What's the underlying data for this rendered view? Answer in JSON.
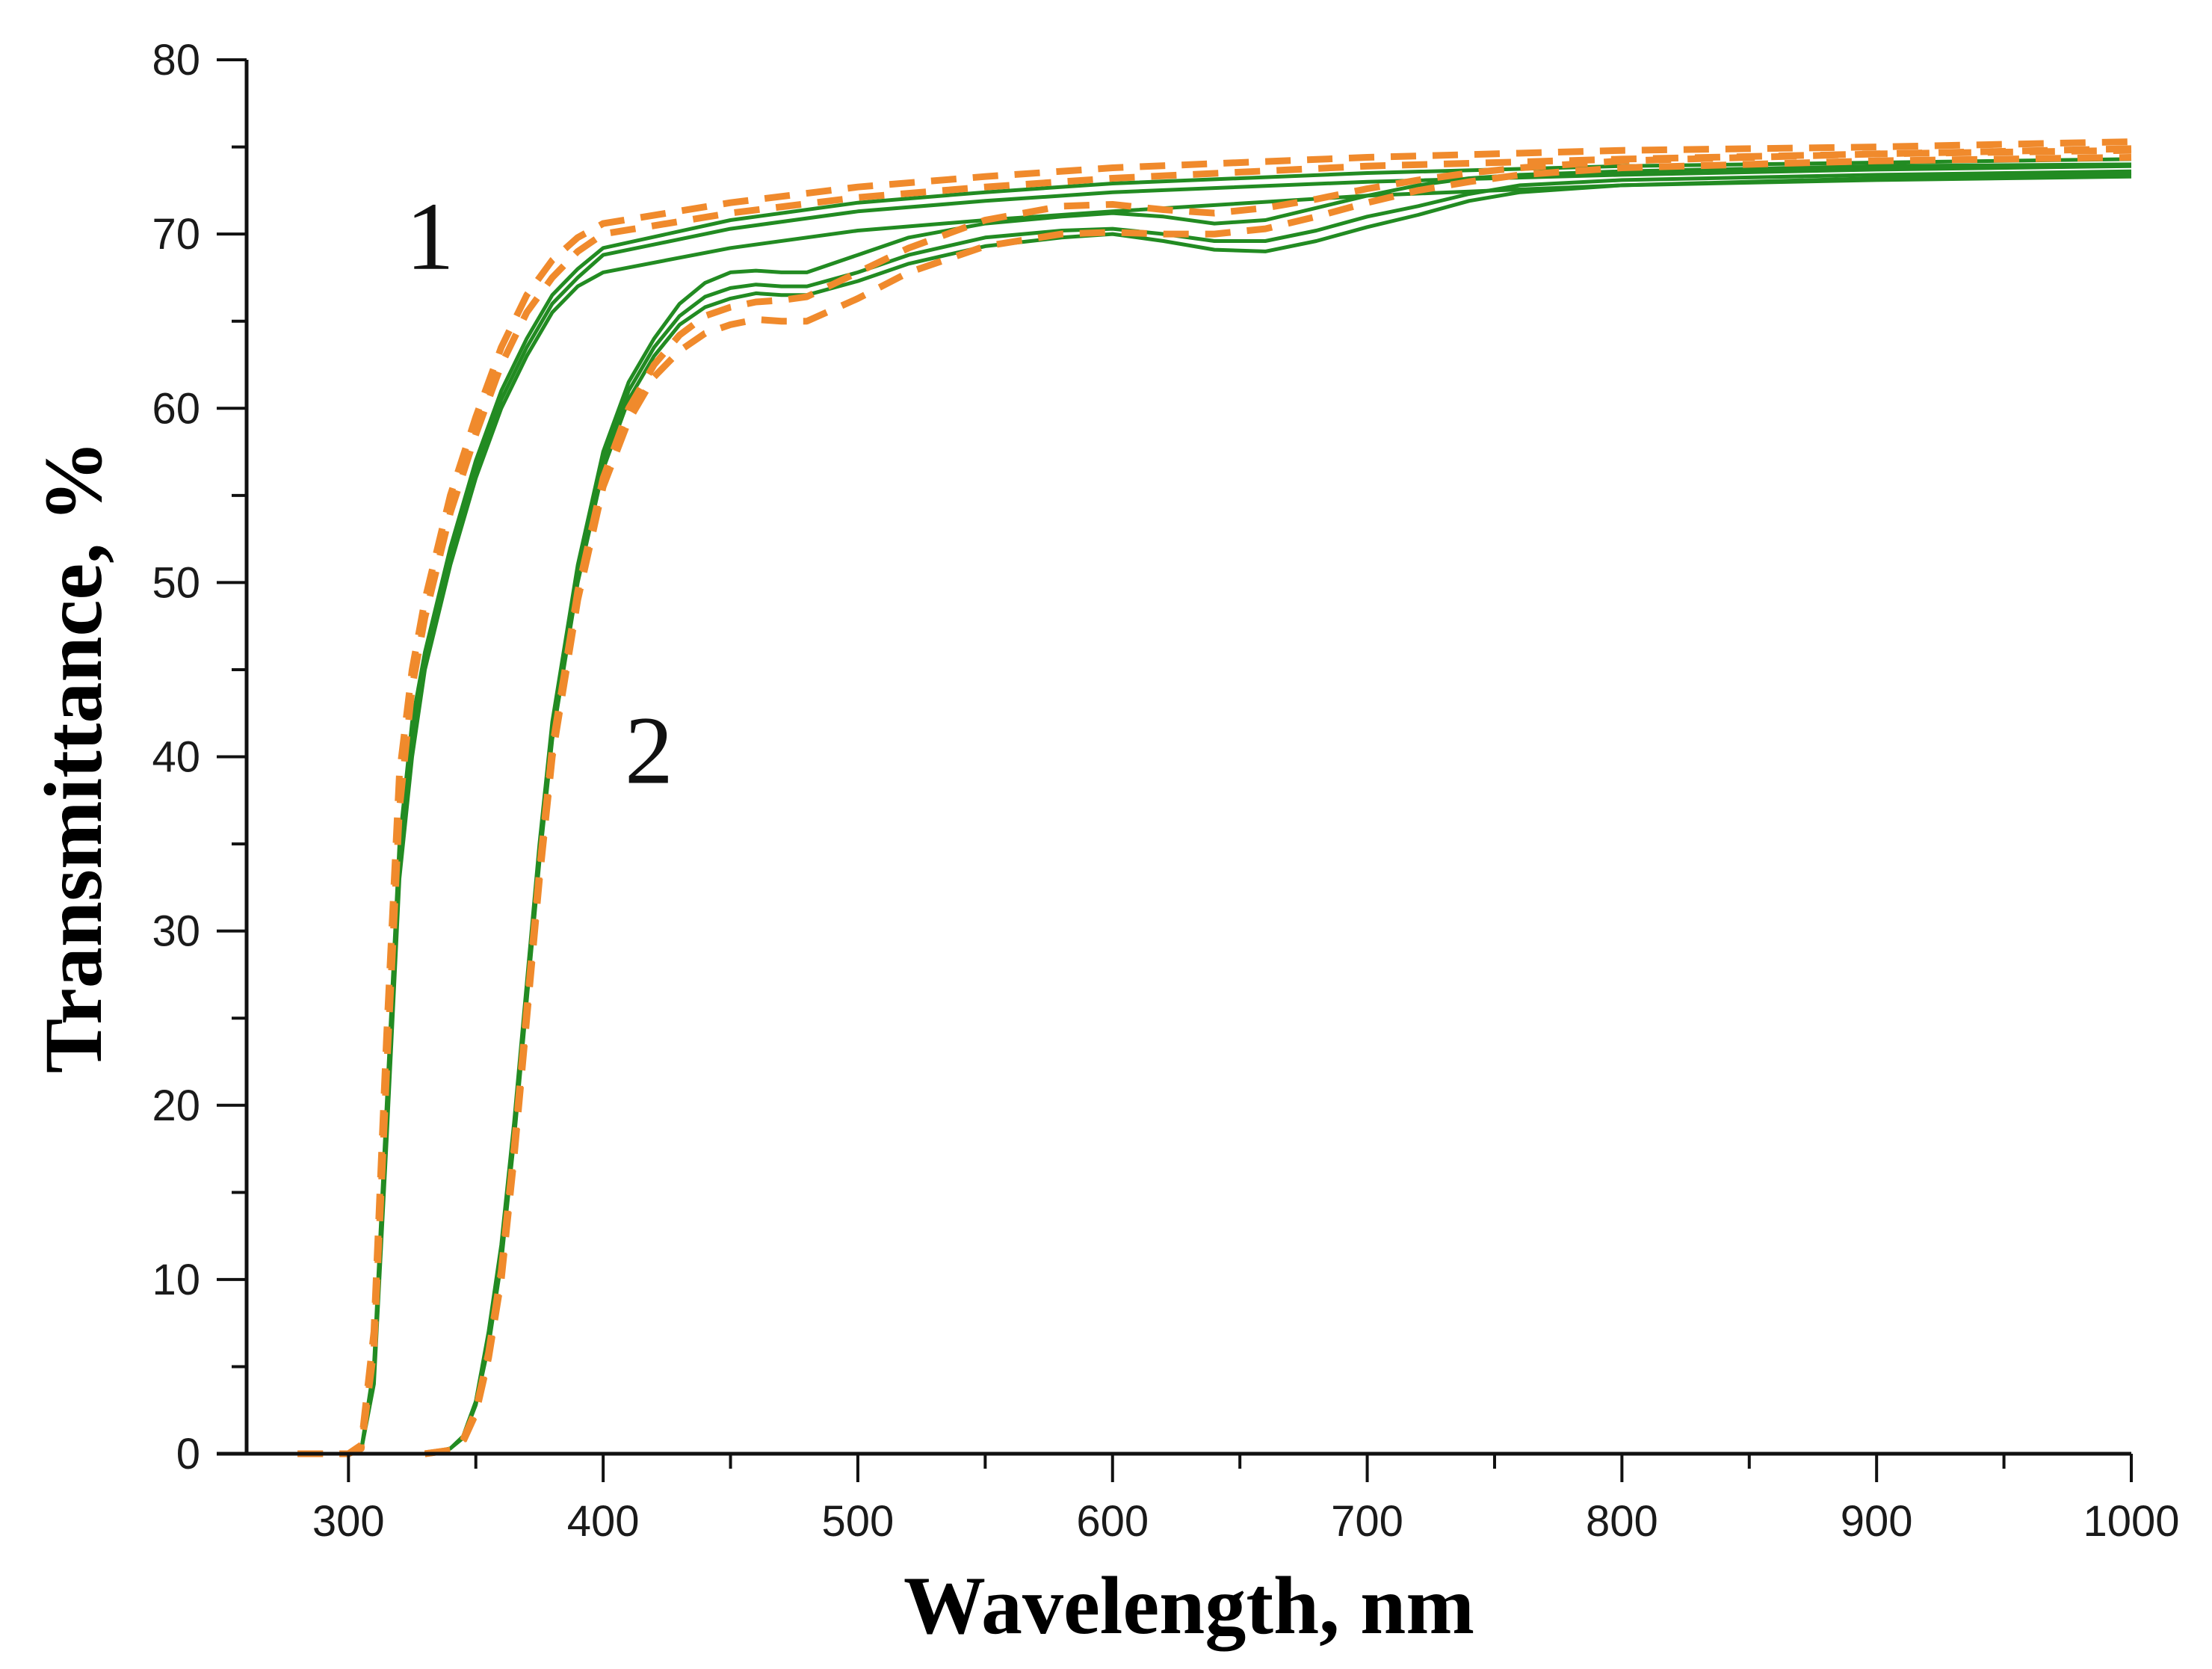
{
  "chart_data": {
    "type": "line",
    "title": "",
    "xlabel": "Wavelength, nm",
    "ylabel": "Transmittance, %",
    "xlim": [
      260,
      1000
    ],
    "ylim": [
      0,
      80
    ],
    "x_ticks": [
      300,
      400,
      500,
      600,
      700,
      800,
      900,
      1000
    ],
    "y_ticks": [
      0,
      10,
      20,
      30,
      40,
      50,
      60,
      70,
      80
    ],
    "grid": false,
    "legend": "none",
    "colors": {
      "solid": "#228B22",
      "dashed": "#F08A2C",
      "axis": "#111111"
    },
    "annotations": [
      {
        "text": "1",
        "x": 332,
        "y": 68
      },
      {
        "text": "2",
        "x": 418,
        "y": 38.5
      }
    ],
    "series": [
      {
        "name": "1-solid-a",
        "group": 1,
        "style": "solid",
        "x": [
          280,
          300,
          305,
          310,
          315,
          320,
          325,
          330,
          340,
          350,
          360,
          370,
          380,
          390,
          400,
          450,
          500,
          550,
          600,
          700,
          800,
          900,
          1000
        ],
        "y": [
          0,
          0,
          0.2,
          5,
          20,
          35,
          42,
          46,
          52,
          57,
          61,
          64,
          66.5,
          68,
          69.2,
          70.8,
          71.8,
          72.4,
          72.9,
          73.5,
          73.9,
          74.1,
          74.3
        ]
      },
      {
        "name": "1-solid-b",
        "group": 1,
        "style": "solid",
        "x": [
          280,
          300,
          305,
          310,
          315,
          320,
          325,
          330,
          340,
          350,
          360,
          370,
          380,
          390,
          400,
          450,
          500,
          550,
          600,
          700,
          800,
          900,
          1000
        ],
        "y": [
          0,
          0,
          0.2,
          4.5,
          19,
          34,
          41,
          45.5,
          51.5,
          56.5,
          60.5,
          63.5,
          66,
          67.5,
          68.8,
          70.3,
          71.3,
          71.9,
          72.4,
          73.0,
          73.4,
          73.7,
          73.9
        ]
      },
      {
        "name": "1-solid-c",
        "group": 1,
        "style": "solid",
        "x": [
          280,
          300,
          305,
          310,
          315,
          320,
          325,
          330,
          340,
          350,
          360,
          370,
          380,
          390,
          400,
          450,
          500,
          550,
          600,
          700,
          800,
          900,
          1000
        ],
        "y": [
          0,
          0,
          0.2,
          4,
          18,
          33,
          40,
          45,
          51,
          56,
          60,
          63,
          65.5,
          67,
          67.8,
          69.2,
          70.2,
          70.8,
          71.3,
          72.2,
          72.8,
          73.2,
          73.5
        ]
      },
      {
        "name": "1-dashed-a",
        "group": 1,
        "style": "dashed",
        "x": [
          280,
          300,
          305,
          310,
          315,
          320,
          325,
          330,
          340,
          350,
          360,
          370,
          380,
          390,
          400,
          450,
          500,
          550,
          600,
          700,
          800,
          900,
          1000
        ],
        "y": [
          0,
          0,
          0.5,
          7,
          24,
          39,
          45,
          49,
          55,
          59.5,
          63.5,
          66.5,
          68.5,
          69.8,
          70.6,
          71.8,
          72.7,
          73.3,
          73.8,
          74.4,
          74.8,
          75.0,
          75.3
        ]
      },
      {
        "name": "1-dashed-b",
        "group": 1,
        "style": "dashed",
        "x": [
          280,
          300,
          305,
          310,
          315,
          320,
          325,
          330,
          340,
          350,
          360,
          370,
          380,
          390,
          400,
          450,
          500,
          550,
          600,
          700,
          800,
          900,
          1000
        ],
        "y": [
          0,
          0,
          0.3,
          6,
          22,
          37,
          44,
          48,
          54,
          58.5,
          62.5,
          65.5,
          67.5,
          69,
          70,
          71.2,
          72.1,
          72.7,
          73.2,
          73.9,
          74.3,
          74.6,
          74.8
        ]
      },
      {
        "name": "2-solid-a",
        "group": 2,
        "style": "solid",
        "x": [
          330,
          340,
          345,
          350,
          355,
          360,
          365,
          370,
          375,
          380,
          390,
          400,
          410,
          420,
          430,
          440,
          450,
          460,
          470,
          480,
          500,
          520,
          550,
          580,
          600,
          620,
          640,
          660,
          680,
          700,
          720,
          740,
          760,
          800,
          900,
          1000
        ],
        "y": [
          0,
          0.3,
          1,
          3,
          7,
          12,
          19,
          27,
          35,
          42,
          51,
          57.5,
          61.5,
          64,
          66,
          67.2,
          67.8,
          67.9,
          67.8,
          67.8,
          68.8,
          69.8,
          70.6,
          71.0,
          71.2,
          71.0,
          70.6,
          70.8,
          71.5,
          72.2,
          72.8,
          73.2,
          73.4,
          73.6,
          73.9,
          74.0
        ]
      },
      {
        "name": "2-solid-b",
        "group": 2,
        "style": "solid",
        "x": [
          330,
          340,
          345,
          350,
          355,
          360,
          365,
          370,
          375,
          380,
          390,
          400,
          410,
          420,
          430,
          440,
          450,
          460,
          470,
          480,
          500,
          520,
          550,
          580,
          600,
          620,
          640,
          660,
          680,
          700,
          720,
          740,
          760,
          800,
          900,
          1000
        ],
        "y": [
          0,
          0.3,
          1,
          3,
          6.5,
          11.5,
          18.5,
          26.5,
          34.5,
          41.5,
          50.5,
          57,
          61,
          63.5,
          65.3,
          66.4,
          66.9,
          67.1,
          67.0,
          67.0,
          67.8,
          68.8,
          69.8,
          70.2,
          70.3,
          70.0,
          69.6,
          69.6,
          70.2,
          71.0,
          71.6,
          72.3,
          72.8,
          73.1,
          73.4,
          73.6
        ]
      },
      {
        "name": "2-solid-c",
        "group": 2,
        "style": "solid",
        "x": [
          330,
          340,
          345,
          350,
          355,
          360,
          365,
          370,
          375,
          380,
          390,
          400,
          410,
          420,
          430,
          440,
          450,
          460,
          470,
          480,
          500,
          520,
          550,
          580,
          600,
          620,
          640,
          660,
          680,
          700,
          720,
          740,
          760,
          800,
          900,
          1000
        ],
        "y": [
          0,
          0.3,
          0.9,
          2.8,
          6.2,
          11,
          18,
          26,
          34,
          41,
          50,
          56.5,
          60.5,
          63,
          64.8,
          65.8,
          66.3,
          66.6,
          66.5,
          66.5,
          67.3,
          68.3,
          69.3,
          69.8,
          70.0,
          69.6,
          69.1,
          69.0,
          69.6,
          70.4,
          71.1,
          71.9,
          72.4,
          72.8,
          73.1,
          73.3
        ]
      },
      {
        "name": "2-dashed-a",
        "group": 2,
        "style": "dashed",
        "x": [
          330,
          340,
          345,
          350,
          355,
          360,
          365,
          370,
          375,
          380,
          390,
          400,
          410,
          420,
          430,
          440,
          450,
          460,
          470,
          480,
          500,
          520,
          550,
          580,
          600,
          620,
          640,
          660,
          680,
          700,
          720,
          740,
          760,
          800,
          900,
          1000
        ],
        "y": [
          0,
          0.2,
          0.8,
          2.5,
          5.8,
          10.5,
          17.5,
          25.5,
          33.5,
          40.5,
          49.5,
          56,
          60,
          62.5,
          64.2,
          65.3,
          65.8,
          66.1,
          66.2,
          66.4,
          67.8,
          69.2,
          70.8,
          71.6,
          71.7,
          71.4,
          71.2,
          71.5,
          72.0,
          72.6,
          73.1,
          73.5,
          73.8,
          74.2,
          74.6,
          74.9
        ]
      },
      {
        "name": "2-dashed-b",
        "group": 2,
        "style": "dashed",
        "x": [
          330,
          340,
          345,
          350,
          355,
          360,
          365,
          370,
          375,
          380,
          390,
          400,
          410,
          420,
          430,
          440,
          450,
          460,
          470,
          480,
          500,
          520,
          550,
          580,
          600,
          620,
          640,
          660,
          680,
          700,
          720,
          740,
          760,
          800,
          900,
          1000
        ],
        "y": [
          0,
          0.2,
          0.7,
          2.3,
          5.5,
          10,
          17,
          25,
          33,
          40,
          49,
          55.5,
          59.3,
          61.8,
          63.3,
          64.3,
          64.8,
          65.1,
          65.0,
          65.0,
          66.3,
          67.8,
          69.3,
          70.0,
          70.1,
          70.0,
          70.0,
          70.3,
          71.0,
          71.8,
          72.5,
          73.0,
          73.4,
          73.8,
          74.2,
          74.4
        ]
      }
    ]
  }
}
